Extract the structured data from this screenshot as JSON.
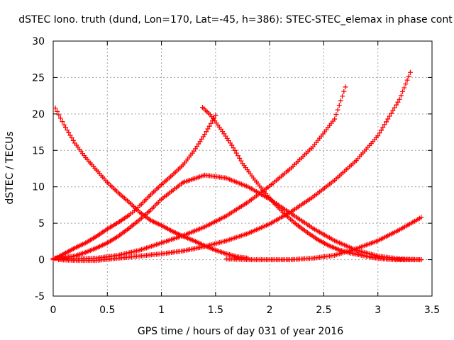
{
  "chart_data": {
    "type": "scatter",
    "title": "dSTEC Iono. truth (dund, Lon=170, Lat=-45, h=386): STEC-STEC_elemax in phase cont",
    "xlabel": "GPS time / hours of day 031 of year 2016",
    "ylabel": "dSTEC  / TECUs",
    "xlim": [
      0,
      3.5
    ],
    "ylim": [
      -5,
      30
    ],
    "xticks": [
      0,
      0.5,
      1,
      1.5,
      2,
      2.5,
      3,
      3.5
    ],
    "yticks": [
      -5,
      0,
      5,
      10,
      15,
      20,
      25,
      30
    ],
    "xtick_labels": [
      "0",
      "0.5",
      "1",
      "1.5",
      "2",
      "2.5",
      "3",
      "3.5"
    ],
    "ytick_labels": [
      "-5",
      "0",
      "5",
      "10",
      "15",
      "20",
      "25",
      "30"
    ],
    "grid": true,
    "marker": "+",
    "marker_color": "#ff0000",
    "series": [
      {
        "x": [
          0.02,
          0.1,
          0.2,
          0.3,
          0.4,
          0.5,
          0.6,
          0.7,
          0.8,
          0.9,
          1.0,
          1.2,
          1.4,
          1.6,
          1.8,
          2.0,
          2.2,
          2.4,
          2.6,
          2.8,
          3.0,
          3.2,
          3.4
        ],
        "y": [
          0.2,
          0.3,
          0.5,
          1.0,
          1.6,
          2.3,
          3.2,
          4.3,
          5.5,
          6.8,
          8.3,
          10.6,
          11.6,
          11.2,
          10.0,
          8.3,
          6.3,
          4.3,
          2.6,
          1.3,
          0.5,
          0.1,
          0.0
        ]
      },
      {
        "x": [
          0.0,
          0.1,
          0.2,
          0.3,
          0.4,
          0.5,
          0.6,
          0.7,
          0.75,
          0.8,
          0.9,
          1.0,
          1.1,
          1.2,
          1.3,
          1.4,
          1.5
        ],
        "y": [
          0.0,
          0.8,
          1.6,
          2.3,
          3.2,
          4.2,
          5.1,
          6.1,
          6.7,
          7.4,
          8.9,
          10.3,
          11.6,
          13.0,
          14.9,
          17.2,
          19.8
        ]
      },
      {
        "x": [
          0.02,
          0.1,
          0.2,
          0.3,
          0.4,
          0.5,
          0.6,
          0.7,
          0.8,
          0.9,
          1.0,
          1.1,
          1.2,
          1.3,
          1.4,
          1.5,
          1.6,
          1.7,
          1.8
        ],
        "y": [
          20.8,
          18.5,
          16.0,
          14.0,
          12.3,
          10.6,
          9.2,
          7.9,
          6.5,
          5.4,
          4.7,
          3.9,
          3.2,
          2.6,
          1.9,
          1.3,
          0.8,
          0.4,
          0.2
        ]
      },
      {
        "x": [
          1.38,
          1.45,
          1.55,
          1.65,
          1.75,
          1.85,
          1.95,
          2.05,
          2.15,
          2.25,
          2.35,
          2.45,
          2.55,
          2.65,
          2.75,
          2.85,
          2.95,
          3.05,
          3.15,
          3.25,
          3.4
        ],
        "y": [
          20.9,
          19.9,
          17.9,
          15.7,
          13.2,
          11.2,
          9.3,
          7.6,
          6.1,
          4.8,
          3.7,
          2.7,
          1.9,
          1.3,
          0.9,
          0.6,
          0.3,
          0.1,
          0.0,
          0.0,
          0.0
        ]
      },
      {
        "x": [
          0.0,
          0.2,
          0.4,
          0.6,
          0.8,
          1.0,
          1.2,
          1.4,
          1.6,
          1.8,
          2.0,
          2.2,
          2.4,
          2.6,
          2.7
        ],
        "y": [
          0.2,
          0.1,
          0.2,
          0.6,
          1.3,
          2.3,
          3.3,
          4.5,
          6.0,
          7.9,
          10.1,
          12.6,
          15.5,
          19.3,
          23.7
        ]
      },
      {
        "x": [
          0.05,
          0.2,
          0.4,
          0.6,
          0.8,
          1.0,
          1.2,
          1.4,
          1.6,
          1.8,
          2.0,
          2.2,
          2.4,
          2.6,
          2.8,
          3.0,
          3.2,
          3.3
        ],
        "y": [
          0.0,
          -0.1,
          -0.1,
          0.2,
          0.5,
          0.8,
          1.2,
          1.8,
          2.6,
          3.6,
          4.9,
          6.6,
          8.6,
          10.9,
          13.6,
          17.0,
          22.0,
          25.7
        ]
      },
      {
        "x": [
          1.6,
          1.8,
          2.0,
          2.2,
          2.4,
          2.6,
          2.8,
          3.0,
          3.2,
          3.4
        ],
        "y": [
          0.1,
          0.0,
          0.0,
          0.0,
          0.2,
          0.6,
          1.5,
          2.6,
          4.1,
          5.8
        ]
      }
    ]
  }
}
